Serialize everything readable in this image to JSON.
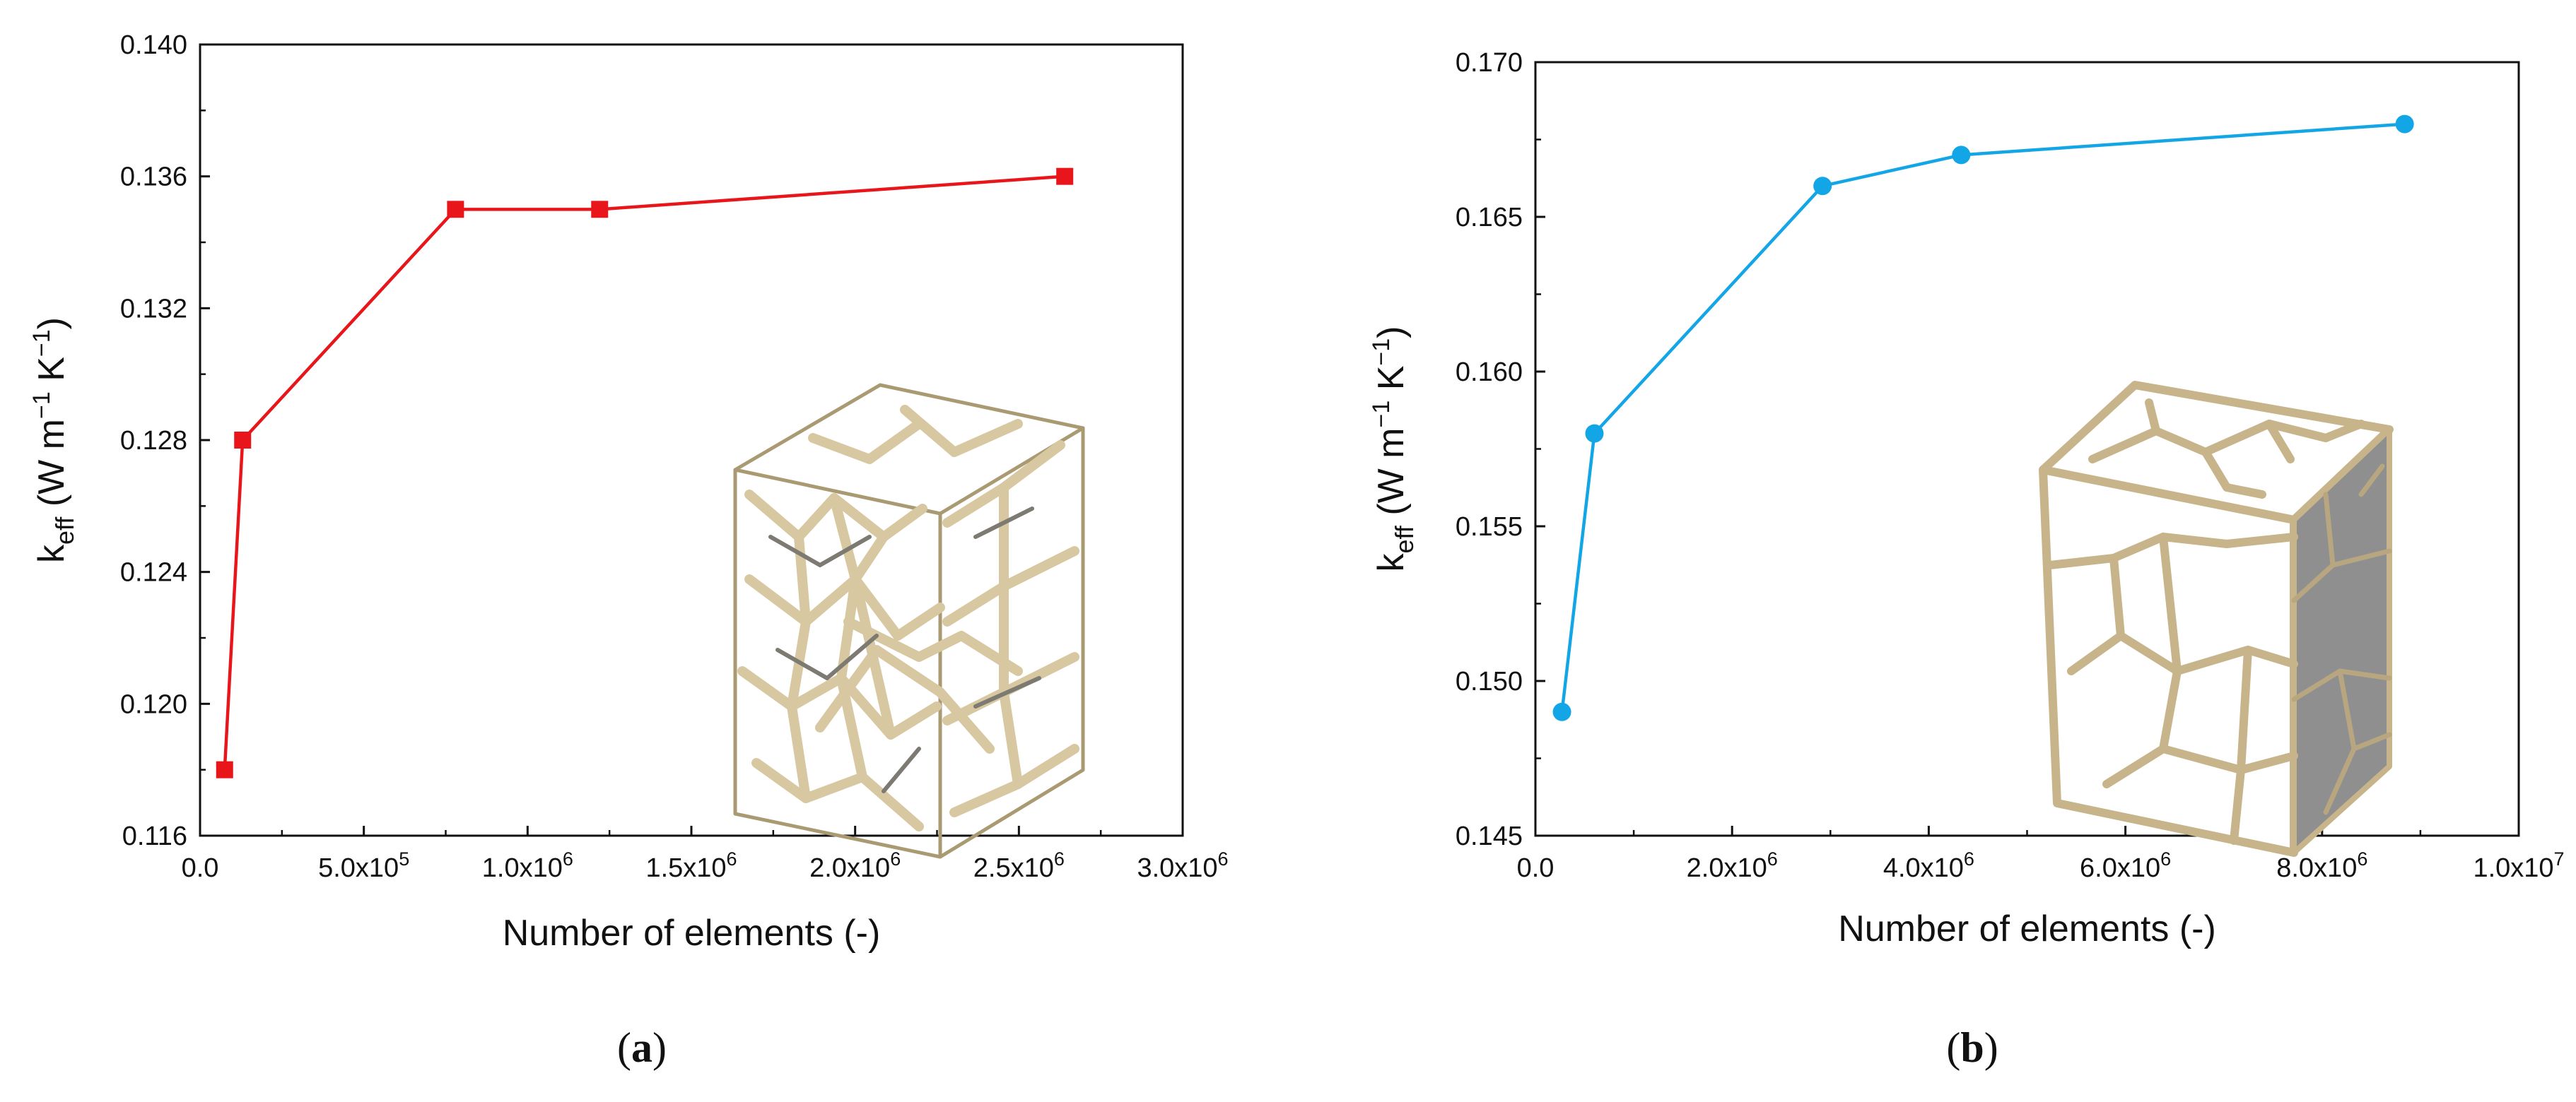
{
  "chart_data": [
    {
      "type": "line",
      "panel_label": "a",
      "xlabel": "Number of elements (-)",
      "ylabel_base": "k",
      "ylabel_sub": "eff",
      "ylabel_unit_1": "(W m",
      "ylabel_sup_1": "−1",
      "ylabel_unit_2": "K",
      "ylabel_sup_2": "−1",
      "ylabel_close": ")",
      "xlim": [
        0,
        3000000
      ],
      "ylim": [
        0.116,
        0.14
      ],
      "x_ticks": [
        0,
        500000,
        1000000,
        1500000,
        2000000,
        2500000,
        3000000
      ],
      "x_tick_labels": [
        {
          "mant": "0.0",
          "exp": ""
        },
        {
          "mant": "5.0x10",
          "exp": "5"
        },
        {
          "mant": "1.0x10",
          "exp": "6"
        },
        {
          "mant": "1.5x10",
          "exp": "6"
        },
        {
          "mant": "2.0x10",
          "exp": "6"
        },
        {
          "mant": "2.5x10",
          "exp": "6"
        },
        {
          "mant": "3.0x10",
          "exp": "6"
        }
      ],
      "y_ticks": [
        0.116,
        0.12,
        0.124,
        0.128,
        0.132,
        0.136,
        0.14
      ],
      "y_tick_labels": [
        "0.116",
        "0.120",
        "0.124",
        "0.128",
        "0.132",
        "0.136",
        "0.140"
      ],
      "grid": false,
      "series": [
        {
          "marker": "square",
          "color": "#e8161b",
          "x": [
            75000,
            130000,
            780000,
            1220000,
            2640000
          ],
          "y": [
            0.118,
            0.128,
            0.135,
            0.135,
            0.136
          ]
        }
      ],
      "inset": "open-cell-foam-cube"
    },
    {
      "type": "line",
      "panel_label": "b",
      "xlabel": "Number of elements (-)",
      "ylabel_base": "k",
      "ylabel_sub": "eff",
      "ylabel_unit_1": "(W m",
      "ylabel_sup_1": "−1",
      "ylabel_unit_2": "K",
      "ylabel_sup_2": "−1",
      "ylabel_close": ")",
      "xlim": [
        0,
        10000000
      ],
      "ylim": [
        0.145,
        0.17
      ],
      "x_ticks": [
        0,
        2000000,
        4000000,
        6000000,
        8000000,
        10000000
      ],
      "x_tick_labels": [
        {
          "mant": "0.0",
          "exp": ""
        },
        {
          "mant": "2.0x10",
          "exp": "6"
        },
        {
          "mant": "4.0x10",
          "exp": "6"
        },
        {
          "mant": "6.0x10",
          "exp": "6"
        },
        {
          "mant": "8.0x10",
          "exp": "6"
        },
        {
          "mant": "1.0x10",
          "exp": "7"
        }
      ],
      "y_ticks": [
        0.145,
        0.15,
        0.155,
        0.16,
        0.165,
        0.17
      ],
      "y_tick_labels": [
        "0.145",
        "0.150",
        "0.155",
        "0.160",
        "0.165",
        "0.170"
      ],
      "grid": false,
      "series": [
        {
          "marker": "circle",
          "color": "#13a6e6",
          "x": [
            270000,
            600000,
            2920000,
            4330000,
            8840000
          ],
          "y": [
            0.149,
            0.158,
            0.166,
            0.167,
            0.168
          ]
        }
      ],
      "inset": "closed-cell-foam-cube"
    }
  ]
}
